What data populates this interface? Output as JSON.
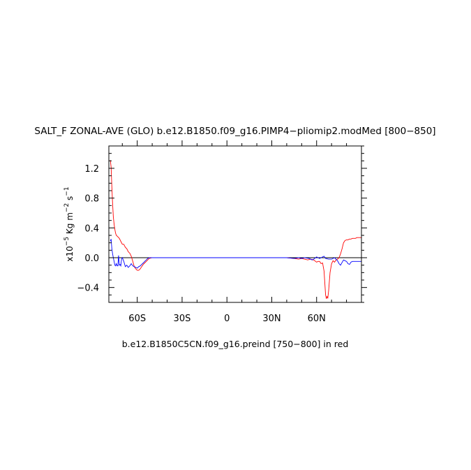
{
  "chart_data": {
    "type": "line",
    "title": "SALT_F ZONAL-AVE (GLO) b.e12.B1850.f09_g16.PIMP4−pliomip2.modMed [800−850]",
    "ylabel": {
      "prefix": "x10",
      "exponent": "−5",
      "unit": "Kg m",
      "unit_exp1": "−2",
      "mid": " s",
      "unit_exp2": "−1"
    },
    "footnote": "b.e12.B1850C5CN.f09_g16.preind [750−800] in red",
    "xlim": [
      -79,
      90
    ],
    "ylim": [
      -0.6,
      1.5
    ],
    "x_ticks": [
      {
        "value": -60,
        "label": "60S"
      },
      {
        "value": -30,
        "label": "30S"
      },
      {
        "value": 0,
        "label": "0"
      },
      {
        "value": 30,
        "label": "30N"
      },
      {
        "value": 60,
        "label": "60N"
      }
    ],
    "y_ticks": [
      {
        "value": 1.2,
        "label": "1.2"
      },
      {
        "value": 0.8,
        "label": "0.8"
      },
      {
        "value": 0.4,
        "label": "0.4"
      },
      {
        "value": 0.0,
        "label": "0.0"
      },
      {
        "value": -0.4,
        "label": "−0.4"
      }
    ],
    "reference_line": 0,
    "series": [
      {
        "color": "#ff0000",
        "x": [
          -78,
          -77.5,
          -77,
          -76.5,
          -76,
          -75.5,
          -75,
          -74.5,
          -74,
          -73,
          -72,
          -71,
          -70,
          -69,
          -68,
          -67,
          -66,
          -65,
          -64,
          -63,
          -62,
          -61,
          -60,
          -59,
          -58,
          -57,
          -56,
          -55,
          -54,
          -53,
          -52,
          -50,
          -45,
          -40,
          -30,
          -20,
          -10,
          0,
          10,
          20,
          30,
          40,
          45,
          48,
          50,
          52,
          54,
          56,
          58,
          60,
          61,
          62,
          63,
          64,
          65,
          66,
          66.5,
          67,
          67.5,
          68,
          69,
          70,
          71,
          72,
          73,
          74,
          75,
          76,
          77,
          78,
          79,
          80,
          81,
          82,
          83,
          84,
          85,
          86,
          87,
          88,
          89,
          90
        ],
        "y": [
          1.31,
          1.22,
          0.95,
          0.72,
          0.55,
          0.45,
          0.38,
          0.33,
          0.3,
          0.28,
          0.26,
          0.22,
          0.18,
          0.18,
          0.14,
          0.12,
          0.08,
          0.06,
          0.02,
          -0.05,
          -0.12,
          -0.15,
          -0.17,
          -0.17,
          -0.15,
          -0.12,
          -0.09,
          -0.07,
          -0.05,
          -0.03,
          -0.01,
          0.0,
          0.0,
          0.0,
          0.0,
          0.0,
          0.0,
          0.0,
          0.0,
          0.0,
          0.0,
          0.0,
          -0.01,
          -0.02,
          -0.01,
          -0.02,
          -0.03,
          -0.02,
          -0.03,
          -0.06,
          -0.05,
          -0.05,
          -0.08,
          -0.07,
          -0.18,
          -0.5,
          -0.55,
          -0.52,
          -0.54,
          -0.45,
          -0.2,
          -0.08,
          -0.04,
          -0.06,
          -0.03,
          -0.02,
          0.0,
          0.05,
          0.12,
          0.2,
          0.23,
          0.24,
          0.24,
          0.25,
          0.25,
          0.26,
          0.26,
          0.26,
          0.27,
          0.27,
          0.27,
          0.27
        ]
      },
      {
        "color": "#0000ff",
        "x": [
          -78,
          -77.5,
          -77,
          -76.5,
          -76,
          -75.5,
          -75,
          -74.5,
          -74,
          -73.5,
          -73,
          -72.5,
          -72,
          -71.5,
          -71,
          -70.5,
          -70,
          -69,
          -68,
          -67,
          -66,
          -65,
          -64,
          -63,
          -62,
          -61,
          -60,
          -59,
          -58,
          -57,
          -56,
          -55,
          -54,
          -53,
          -52,
          -50,
          -45,
          -40,
          -30,
          -20,
          -10,
          0,
          10,
          20,
          30,
          40,
          45,
          48,
          50,
          52,
          55,
          57,
          58,
          60,
          62,
          64,
          65,
          66,
          68,
          70,
          72,
          74,
          75,
          76,
          78,
          79,
          80,
          81,
          82,
          83,
          84,
          85,
          86,
          87,
          88,
          89,
          90
        ],
        "y": [
          0.22,
          0.25,
          0.12,
          0.05,
          0.0,
          -0.05,
          -0.1,
          -0.11,
          -0.08,
          -0.11,
          -0.11,
          0.03,
          -0.1,
          -0.09,
          -0.11,
          -0.02,
          0.0,
          -0.05,
          -0.12,
          -0.1,
          -0.13,
          -0.11,
          -0.08,
          -0.11,
          -0.12,
          -0.13,
          -0.14,
          -0.12,
          -0.11,
          -0.09,
          -0.07,
          -0.05,
          -0.03,
          -0.01,
          0.0,
          0.0,
          0.0,
          0.0,
          0.0,
          0.0,
          0.0,
          0.0,
          0.0,
          0.0,
          0.0,
          0.0,
          -0.01,
          0.0,
          -0.01,
          0.0,
          -0.01,
          -0.03,
          -0.02,
          0.01,
          -0.01,
          0.01,
          0.02,
          -0.01,
          -0.02,
          -0.02,
          0.0,
          -0.04,
          -0.08,
          -0.1,
          -0.03,
          -0.04,
          -0.05,
          -0.08,
          -0.09,
          -0.06,
          -0.05,
          -0.05,
          -0.05,
          -0.05,
          -0.05,
          -0.05,
          -0.05
        ]
      }
    ]
  }
}
